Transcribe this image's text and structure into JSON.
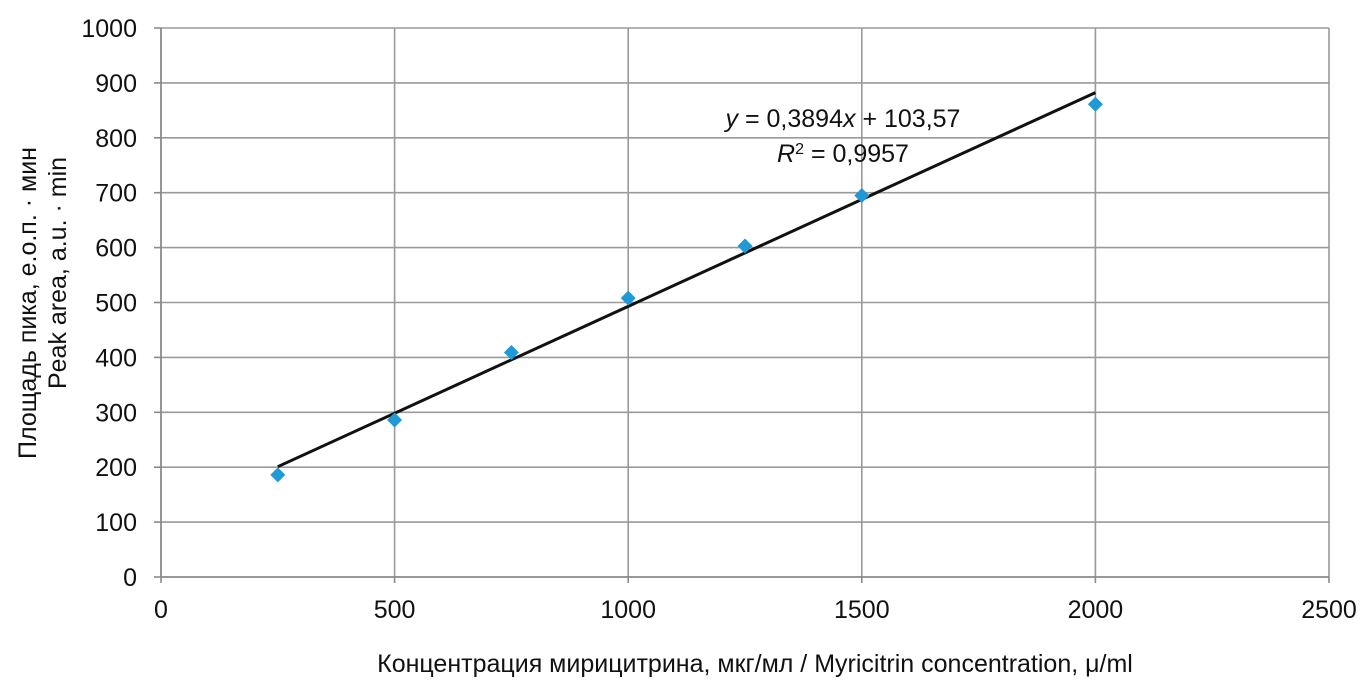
{
  "chart_data": {
    "type": "scatter",
    "xlabel": "Концентрация мирицитрина, мкг/мл / Myricitrin concentration, μ/ml",
    "ylabel_line1": "Площадь пика, е.о.п. · мин",
    "ylabel_line2": "Peak area, a.u. · min",
    "xlim": [
      0,
      2500
    ],
    "ylim": [
      0,
      1000
    ],
    "x_ticks": [
      0,
      500,
      1000,
      1500,
      2000,
      2500
    ],
    "y_ticks": [
      0,
      100,
      200,
      300,
      400,
      500,
      600,
      700,
      800,
      900,
      1000
    ],
    "grid": true,
    "series": [
      {
        "marker": "diamond",
        "color": "#1f9ad6",
        "points": [
          {
            "x": 250,
            "y": 186
          },
          {
            "x": 500,
            "y": 286
          },
          {
            "x": 750,
            "y": 409
          },
          {
            "x": 1000,
            "y": 508
          },
          {
            "x": 1250,
            "y": 603
          },
          {
            "x": 1500,
            "y": 695
          },
          {
            "x": 2000,
            "y": 861
          }
        ]
      }
    ],
    "trendline": {
      "type": "linear",
      "slope": 0.3894,
      "intercept": 103.57,
      "x_range": [
        250,
        2000
      ],
      "color": "#111111"
    },
    "equation": {
      "y_var": "y",
      "eq_rest": " = 0,3894",
      "x_var": "x",
      "eq_tail": " + 103,57",
      "r_var": "R",
      "r_sup": "2",
      "r_rest": " = 0,9957"
    }
  }
}
